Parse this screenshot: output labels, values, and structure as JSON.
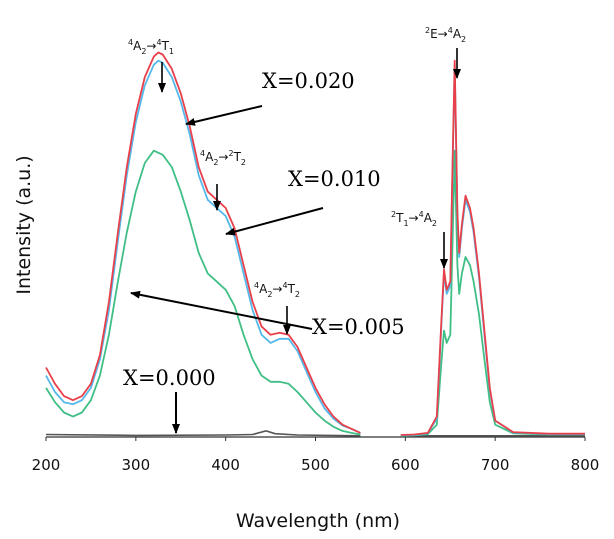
{
  "chart_data": {
    "type": "line",
    "xlabel": "Wavelength (nm)",
    "ylabel": "Intensity (a.u.)",
    "xlim": [
      200,
      800
    ],
    "ylim": [
      0,
      100
    ],
    "x_ticks": [
      "200",
      "300",
      "400",
      "500",
      "600",
      "700",
      "800"
    ],
    "grid": false,
    "colors": {
      "X=0.020": "#e8404a",
      "X=0.010": "#55b8ea",
      "X=0.005": "#3fbf85",
      "X=0.000": "#555555"
    },
    "series": [
      {
        "name": "X=0.020",
        "segments": [
          [
            [
              200,
              17
            ],
            [
              210,
              13
            ],
            [
              220,
              10
            ],
            [
              230,
              9
            ],
            [
              240,
              10
            ],
            [
              250,
              13
            ],
            [
              260,
              20
            ],
            [
              270,
              33
            ],
            [
              280,
              50
            ],
            [
              290,
              66
            ],
            [
              300,
              79
            ],
            [
              310,
              88
            ],
            [
              320,
              93
            ],
            [
              325,
              94
            ],
            [
              330,
              93.5
            ],
            [
              340,
              90
            ],
            [
              350,
              84
            ],
            [
              360,
              76
            ],
            [
              370,
              66
            ],
            [
              380,
              60
            ],
            [
              390,
              58
            ],
            [
              400,
              56
            ],
            [
              410,
              51
            ],
            [
              420,
              42
            ],
            [
              430,
              33
            ],
            [
              440,
              27
            ],
            [
              450,
              25
            ],
            [
              460,
              25.5
            ],
            [
              470,
              25
            ],
            [
              480,
              22
            ],
            [
              490,
              17
            ],
            [
              500,
              12
            ],
            [
              510,
              8
            ],
            [
              520,
              5
            ],
            [
              530,
              3
            ],
            [
              540,
              2
            ],
            [
              550,
              1
            ]
          ],
          [
            [
              595,
              0.5
            ],
            [
              610,
              0.6
            ],
            [
              625,
              1
            ],
            [
              635,
              5
            ],
            [
              640,
              28
            ],
            [
              643,
              41
            ],
            [
              646,
              36
            ],
            [
              650,
              38
            ],
            [
              652,
              60
            ],
            [
              655,
              92
            ],
            [
              658,
              55
            ],
            [
              660,
              45
            ],
            [
              663,
              52
            ],
            [
              667,
              59
            ],
            [
              672,
              56
            ],
            [
              676,
              51
            ],
            [
              682,
              40
            ],
            [
              688,
              26
            ],
            [
              694,
              12
            ],
            [
              700,
              4
            ],
            [
              720,
              1.2
            ],
            [
              760,
              0.8
            ],
            [
              800,
              0.8
            ]
          ]
        ]
      },
      {
        "name": "X=0.010",
        "segments": [
          [
            [
              200,
              15
            ],
            [
              210,
              11
            ],
            [
              220,
              8.5
            ],
            [
              230,
              8
            ],
            [
              240,
              9
            ],
            [
              250,
              12
            ],
            [
              260,
              19
            ],
            [
              270,
              31
            ],
            [
              280,
              48
            ],
            [
              290,
              64
            ],
            [
              300,
              77
            ],
            [
              310,
              86
            ],
            [
              320,
              91
            ],
            [
              325,
              92
            ],
            [
              330,
              91.5
            ],
            [
              340,
              88
            ],
            [
              350,
              82
            ],
            [
              360,
              74
            ],
            [
              370,
              64
            ],
            [
              380,
              58
            ],
            [
              390,
              56
            ],
            [
              400,
              54
            ],
            [
              410,
              49
            ],
            [
              420,
              40
            ],
            [
              430,
              31
            ],
            [
              440,
              25
            ],
            [
              450,
              23
            ],
            [
              460,
              24
            ],
            [
              470,
              24
            ],
            [
              480,
              21
            ],
            [
              490,
              16
            ],
            [
              500,
              11
            ],
            [
              510,
              7
            ],
            [
              520,
              4.5
            ],
            [
              530,
              2.8
            ],
            [
              540,
              2
            ],
            [
              550,
              1
            ]
          ],
          [
            [
              595,
              0.4
            ],
            [
              610,
              0.5
            ],
            [
              625,
              0.9
            ],
            [
              635,
              4.5
            ],
            [
              640,
              27
            ],
            [
              643,
              40
            ],
            [
              646,
              35
            ],
            [
              650,
              37
            ],
            [
              652,
              59
            ],
            [
              655,
              91
            ],
            [
              658,
              54
            ],
            [
              660,
              44
            ],
            [
              663,
              51
            ],
            [
              667,
              58
            ],
            [
              672,
              55
            ],
            [
              676,
              50
            ],
            [
              682,
              39
            ],
            [
              688,
              25
            ],
            [
              694,
              11.5
            ],
            [
              700,
              4
            ],
            [
              720,
              1.1
            ],
            [
              760,
              0.7
            ],
            [
              800,
              0.7
            ]
          ]
        ]
      },
      {
        "name": "X=0.005",
        "segments": [
          [
            [
              200,
              12
            ],
            [
              210,
              8.5
            ],
            [
              220,
              6
            ],
            [
              230,
              5
            ],
            [
              240,
              6
            ],
            [
              250,
              9
            ],
            [
              260,
              15
            ],
            [
              270,
              25
            ],
            [
              280,
              38
            ],
            [
              290,
              50
            ],
            [
              300,
              60
            ],
            [
              310,
              67
            ],
            [
              320,
              70
            ],
            [
              330,
              69
            ],
            [
              340,
              66
            ],
            [
              350,
              60
            ],
            [
              360,
              53
            ],
            [
              370,
              45
            ],
            [
              380,
              40
            ],
            [
              390,
              38
            ],
            [
              400,
              36
            ],
            [
              410,
              32
            ],
            [
              420,
              25
            ],
            [
              430,
              19
            ],
            [
              440,
              15
            ],
            [
              450,
              13.5
            ],
            [
              460,
              13.5
            ],
            [
              470,
              13
            ],
            [
              480,
              11
            ],
            [
              490,
              8.5
            ],
            [
              500,
              6
            ],
            [
              510,
              4
            ],
            [
              520,
              2.5
            ],
            [
              530,
              1.5
            ],
            [
              540,
              1
            ],
            [
              550,
              0.6
            ]
          ],
          [
            [
              595,
              0.3
            ],
            [
              610,
              0.4
            ],
            [
              625,
              0.7
            ],
            [
              635,
              3
            ],
            [
              640,
              18
            ],
            [
              643,
              26
            ],
            [
              646,
              23
            ],
            [
              650,
              25
            ],
            [
              652,
              42
            ],
            [
              655,
              70
            ],
            [
              658,
              42
            ],
            [
              660,
              35
            ],
            [
              663,
              40
            ],
            [
              667,
              44
            ],
            [
              672,
              42
            ],
            [
              676,
              38
            ],
            [
              682,
              30
            ],
            [
              688,
              19
            ],
            [
              694,
              8.5
            ],
            [
              700,
              3
            ],
            [
              720,
              0.9
            ],
            [
              760,
              0.6
            ],
            [
              800,
              0.6
            ]
          ]
        ]
      },
      {
        "name": "X=0.000",
        "segments": [
          [
            [
              200,
              0.6
            ],
            [
              300,
              0.4
            ],
            [
              400,
              0.5
            ],
            [
              430,
              0.6
            ],
            [
              445,
              1.5
            ],
            [
              455,
              0.8
            ],
            [
              480,
              0.5
            ],
            [
              550,
              0.3
            ]
          ],
          [
            [
              595,
              0.3
            ],
            [
              700,
              0.3
            ],
            [
              800,
              0.3
            ]
          ]
        ]
      }
    ],
    "annotations": {
      "t1_base": "4A2→4T1",
      "t2_base": "4A2→2T2",
      "t3_base": "4A2→4T2",
      "e_base": "2E→4A2",
      "t4_base": "2T1→4A2",
      "x020": "X=0.020",
      "x010": "X=0.010",
      "x005": "X=0.005",
      "x000": "X=0.000"
    }
  }
}
